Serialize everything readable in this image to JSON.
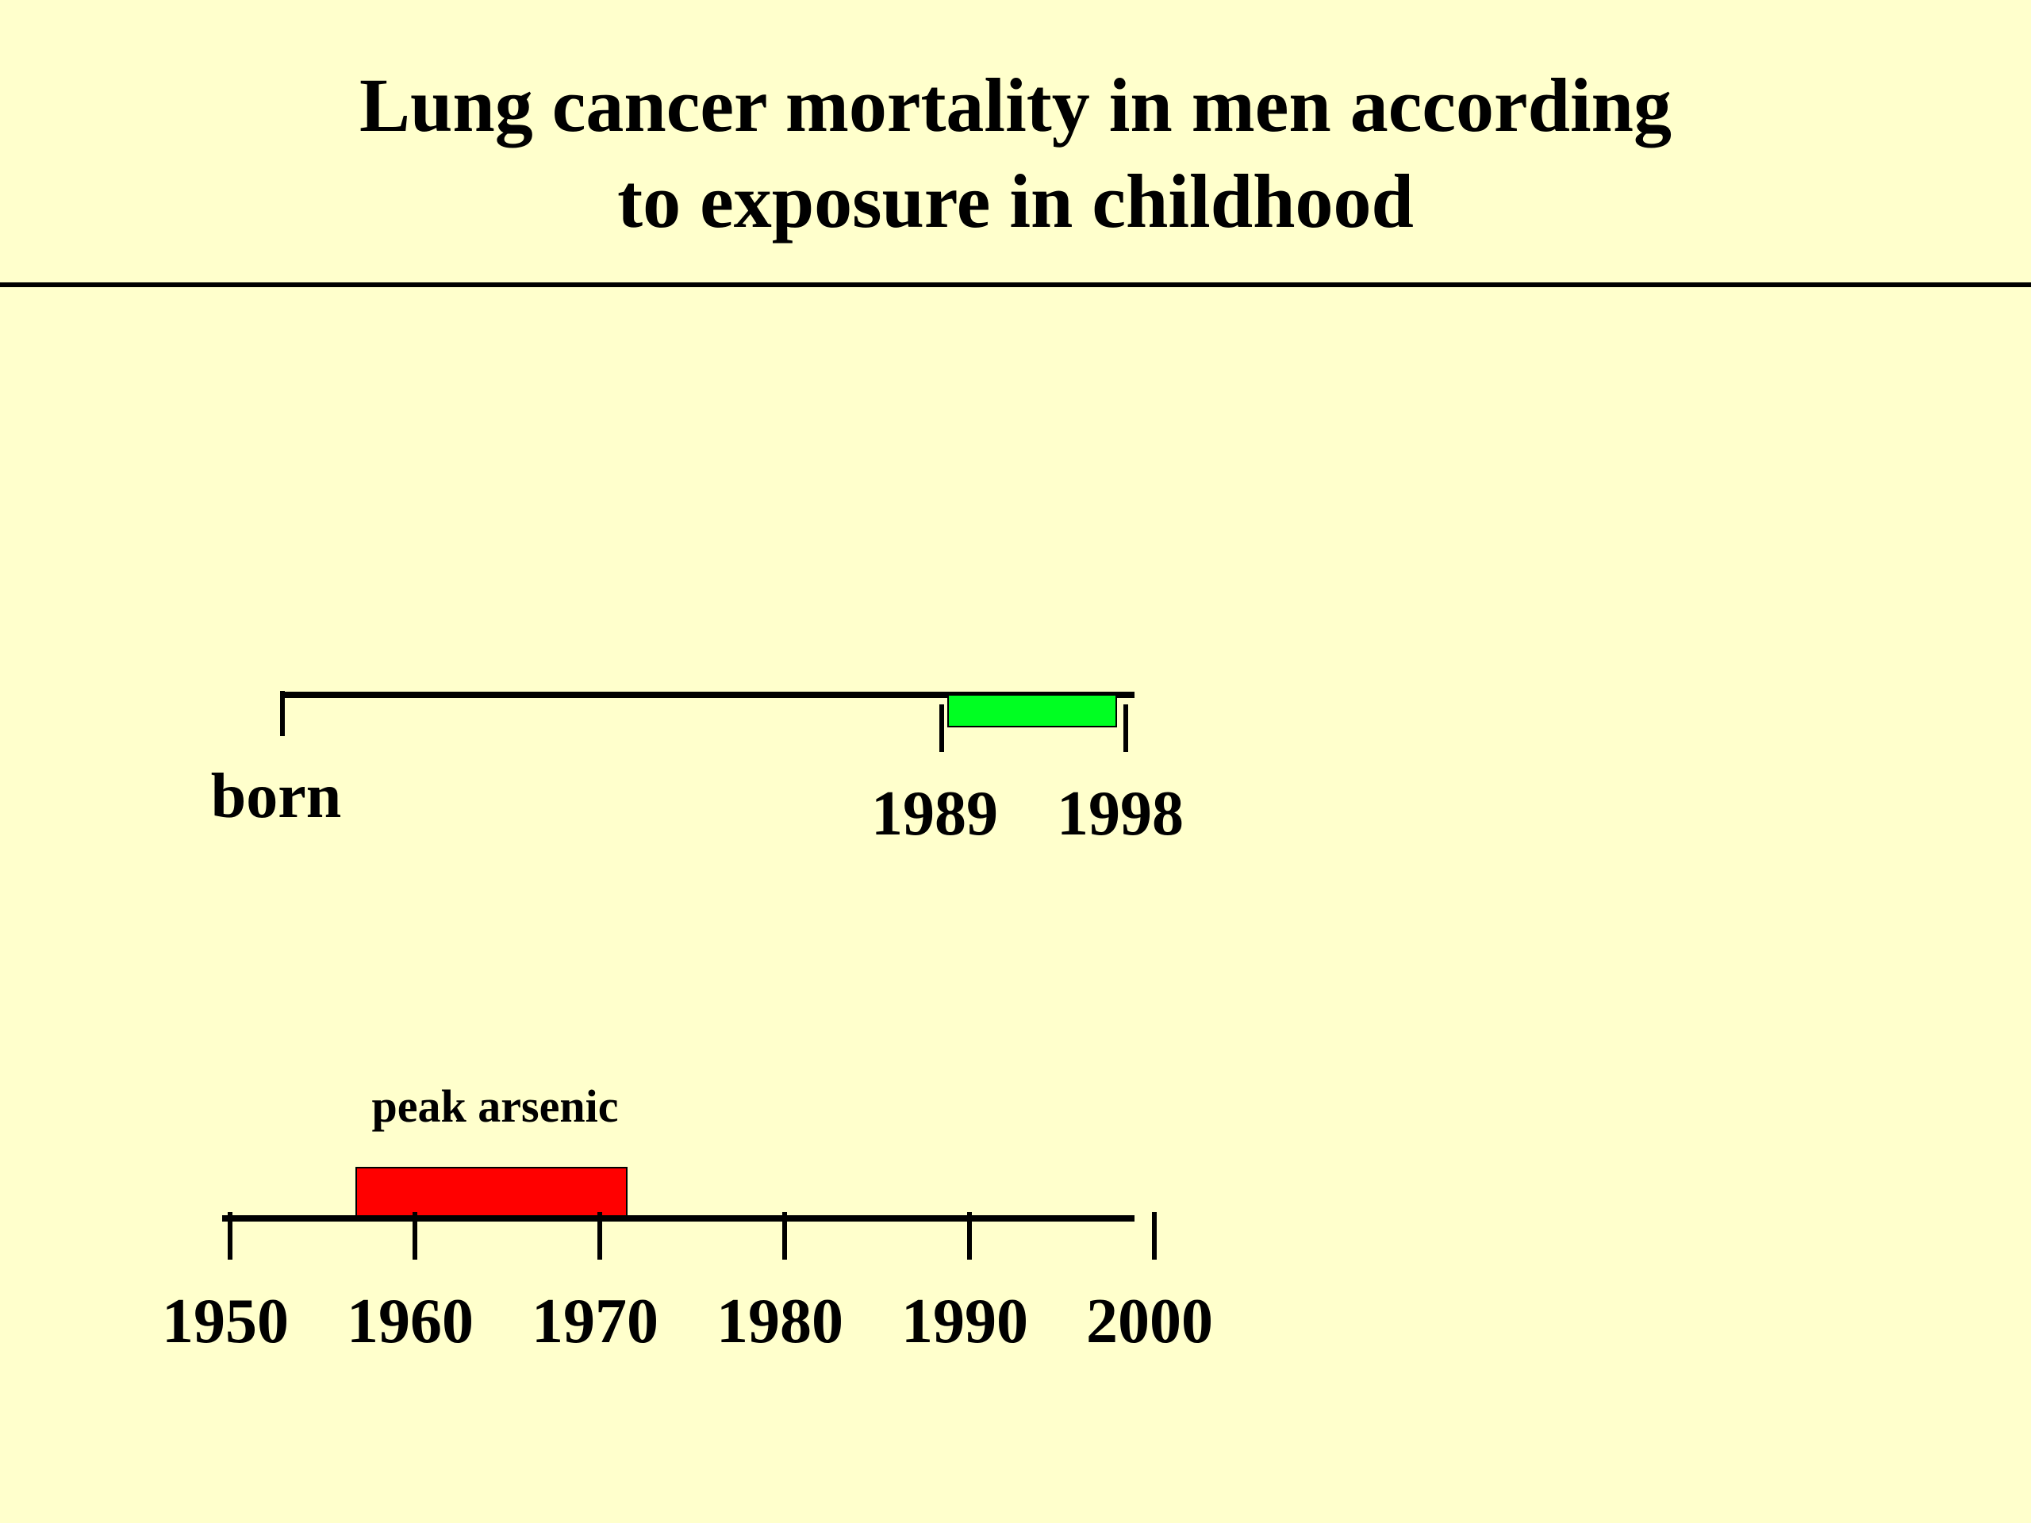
{
  "title": {
    "line1": "Lung cancer mortality in men according",
    "line2": "to exposure in childhood"
  },
  "upper_timeline": {
    "born_label": "born",
    "start_year_label": "1989",
    "end_year_label": "1998",
    "bar_color": "#00ff22"
  },
  "lower_timeline": {
    "peak_label": "peak arsenic",
    "bar_color": "#ff0000",
    "tick_labels": [
      "1950",
      "1960",
      "1970",
      "1980",
      "1990",
      "2000"
    ]
  },
  "colors": {
    "background": "#ffffcc",
    "line": "#000000"
  }
}
